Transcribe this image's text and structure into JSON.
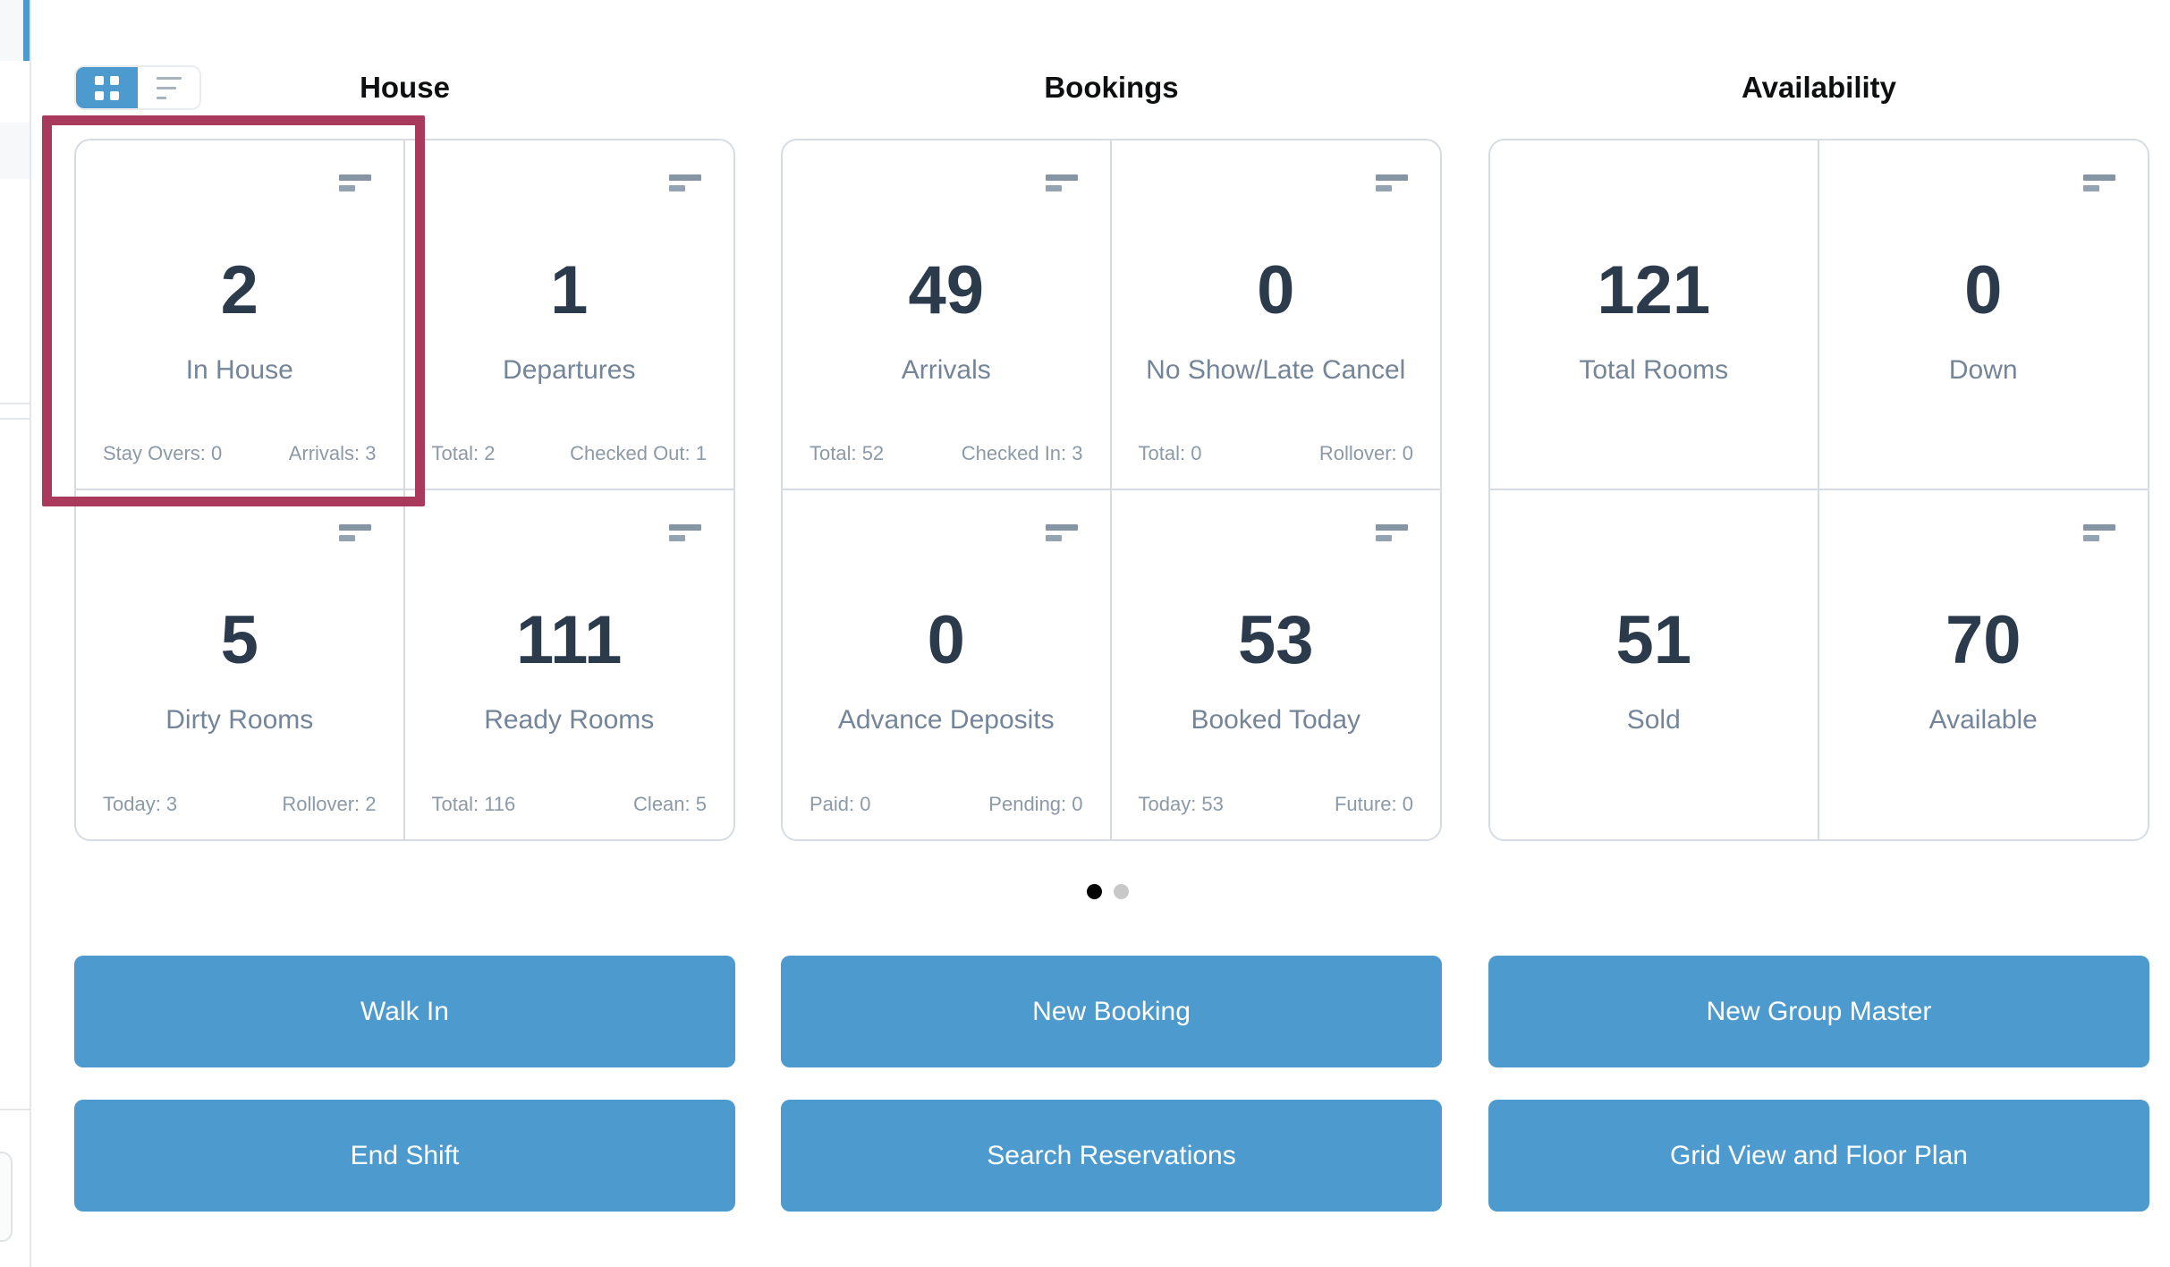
{
  "view_toggle": {
    "grid_icon": "grid-view-icon",
    "list_icon": "list-view-icon",
    "active": "grid"
  },
  "sections": [
    {
      "title": "House",
      "cards": [
        {
          "value": "2",
          "label": "In House",
          "stat_left": "Stay Overs: 0",
          "stat_right": "Arrivals: 3",
          "highlighted": true
        },
        {
          "value": "1",
          "label": "Departures",
          "stat_left": "Total: 2",
          "stat_right": "Checked Out: 1"
        },
        {
          "value": "5",
          "label": "Dirty Rooms",
          "stat_left": "Today: 3",
          "stat_right": "Rollover: 2"
        },
        {
          "value": "111",
          "label": "Ready Rooms",
          "stat_left": "Total: 116",
          "stat_right": "Clean: 5"
        }
      ]
    },
    {
      "title": "Bookings",
      "cards": [
        {
          "value": "49",
          "label": "Arrivals",
          "stat_left": "Total: 52",
          "stat_right": "Checked In: 3"
        },
        {
          "value": "0",
          "label": "No Show/Late Cancel",
          "stat_left": "Total: 0",
          "stat_right": "Rollover: 0"
        },
        {
          "value": "0",
          "label": "Advance Deposits",
          "stat_left": "Paid: 0",
          "stat_right": "Pending: 0"
        },
        {
          "value": "53",
          "label": "Booked Today",
          "stat_left": "Today: 53",
          "stat_right": "Future: 0"
        }
      ]
    },
    {
      "title": "Availability",
      "cards": [
        {
          "value": "121",
          "label": "Total Rooms"
        },
        {
          "value": "0",
          "label": "Down"
        },
        {
          "value": "51",
          "label": "Sold"
        },
        {
          "value": "70",
          "label": "Available"
        }
      ]
    }
  ],
  "carousel": {
    "dots": [
      {
        "state": "active"
      },
      {
        "state": "inactive"
      }
    ]
  },
  "buttons": [
    {
      "label": "Walk In"
    },
    {
      "label": "New Booking"
    },
    {
      "label": "New Group Master"
    },
    {
      "label": "End Shift"
    },
    {
      "label": "Search Reservations"
    },
    {
      "label": "Grid View and Floor Plan"
    }
  ],
  "colors": {
    "accent_blue": "#4c9ace",
    "highlight_maroon": "#a93a5e",
    "number_text": "#2b3b4c",
    "label_text": "#74859a",
    "stat_text": "#8c99a6",
    "card_border": "#d6dce1",
    "dot_active": "#050505",
    "dot_inactive": "#c8c8c8"
  }
}
